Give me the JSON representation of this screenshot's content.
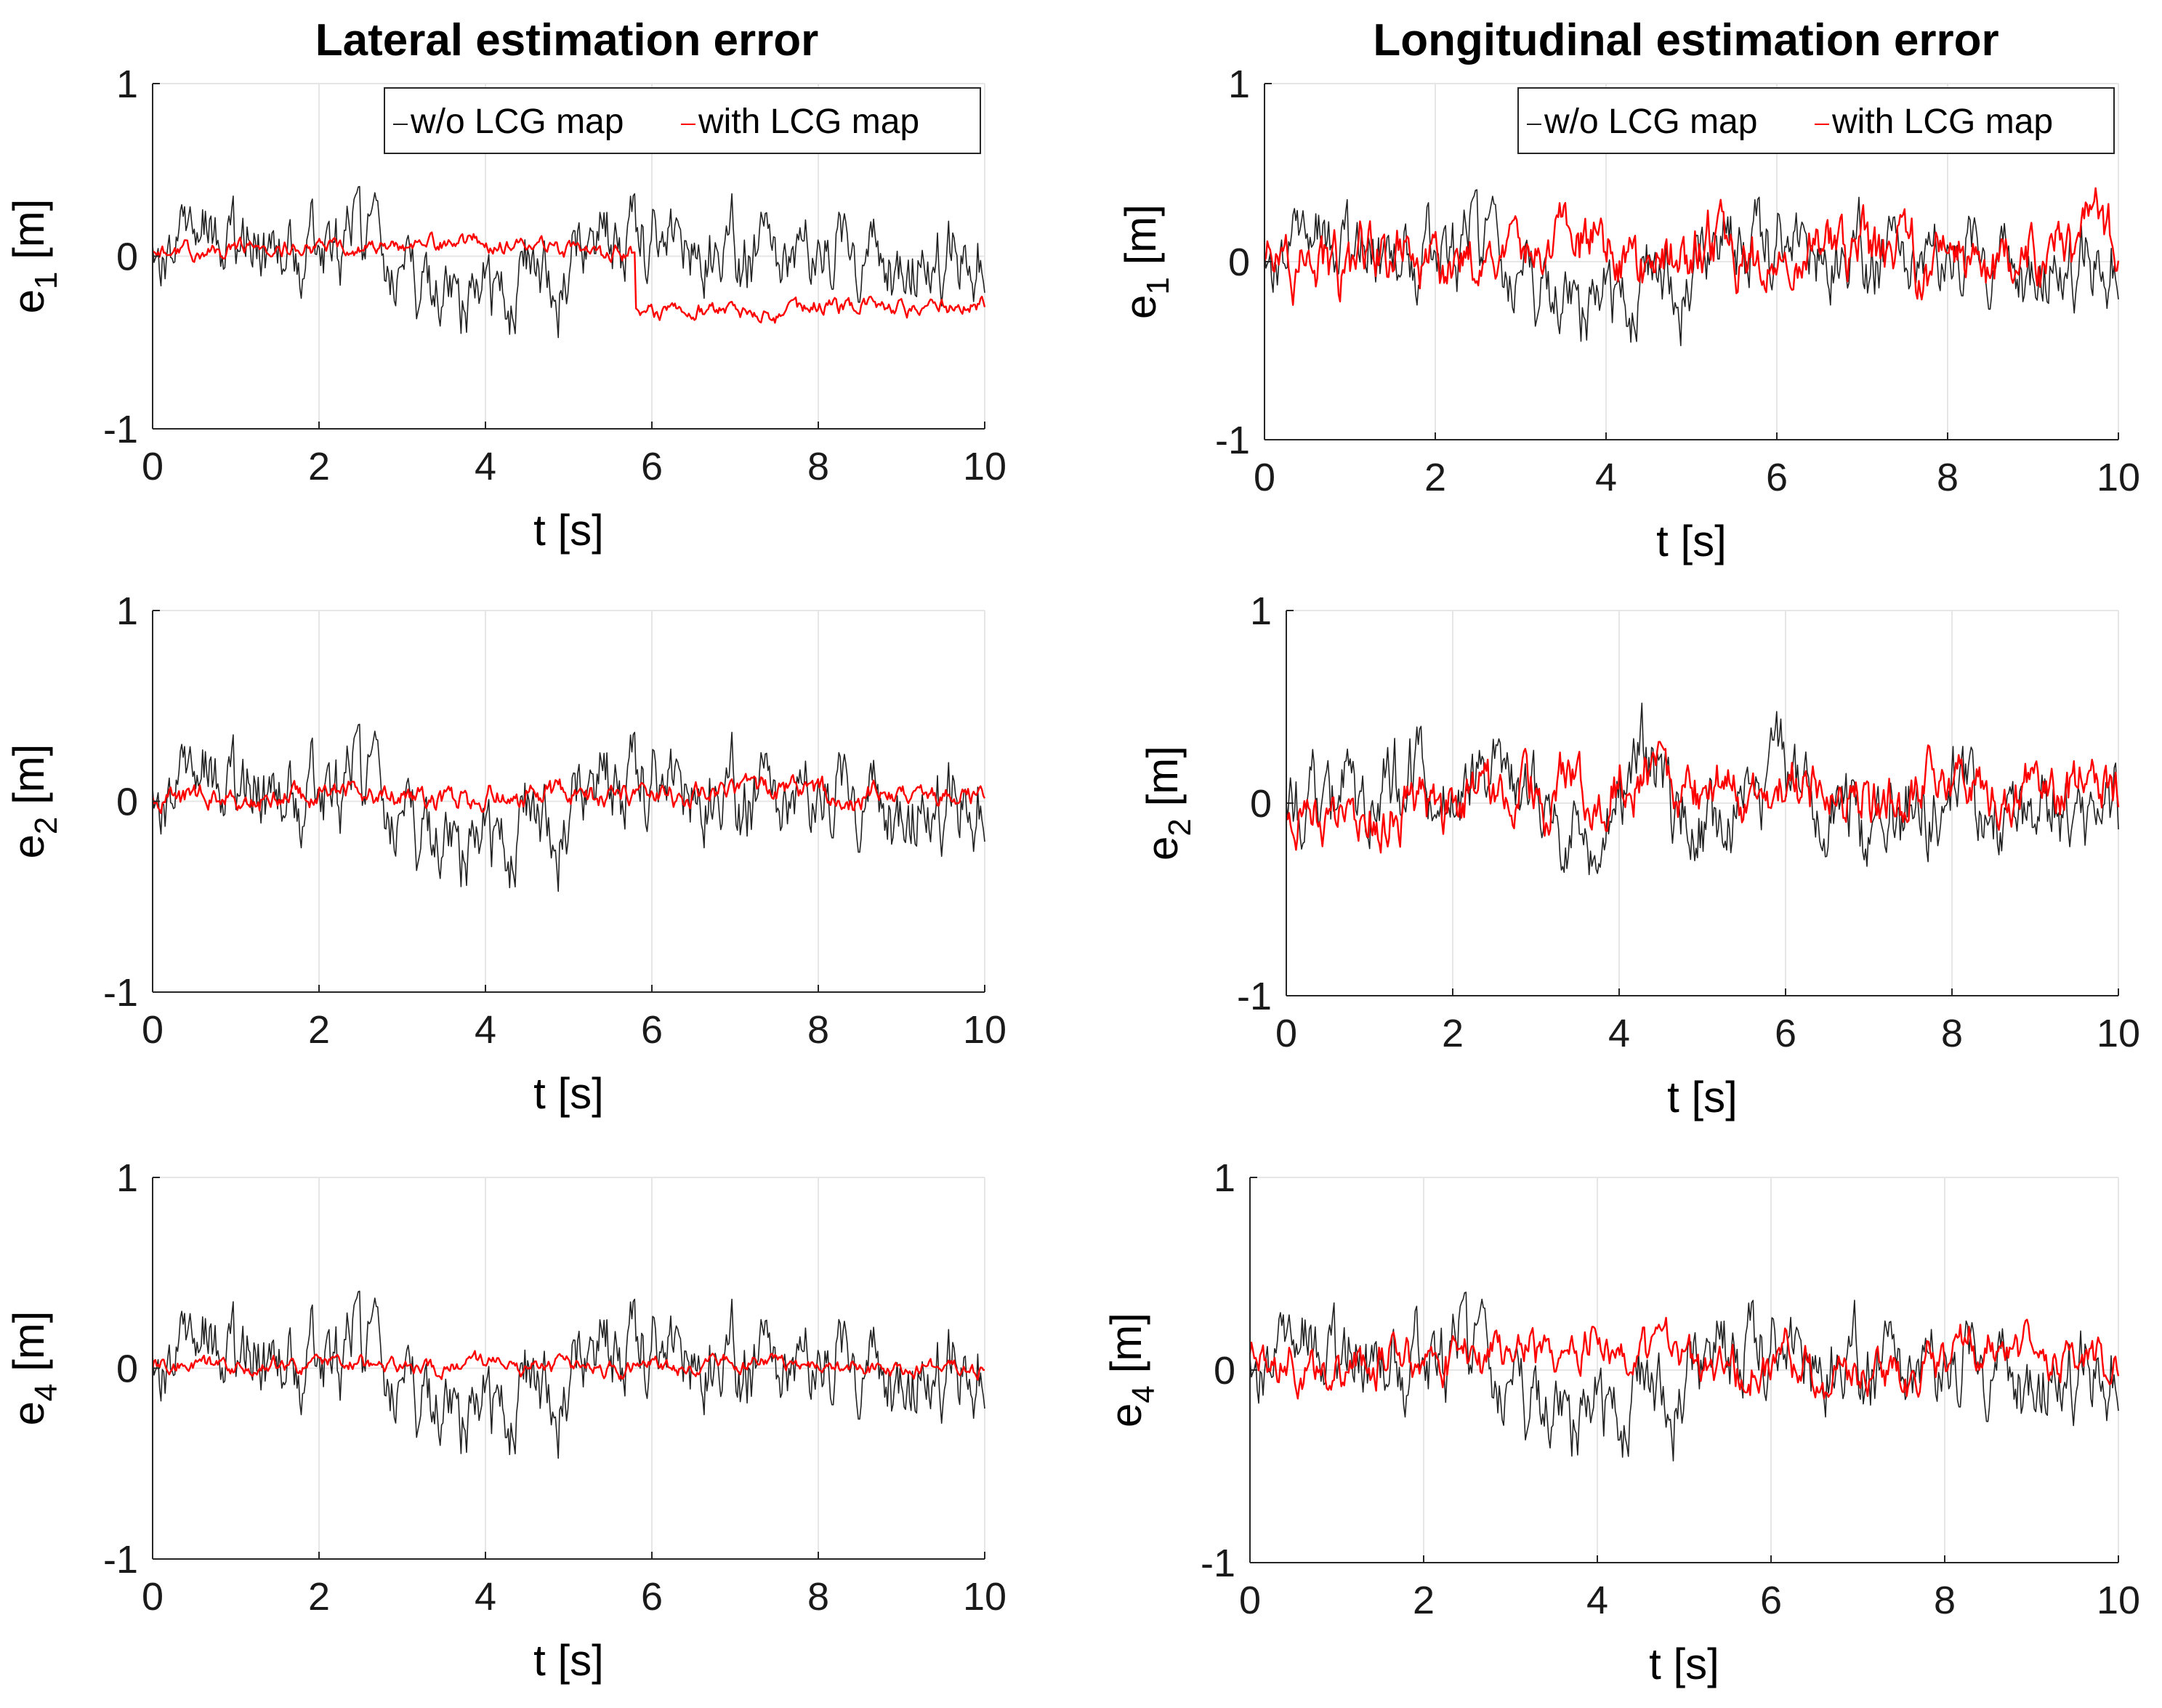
{
  "figure": {
    "column_titles": [
      "Lateral estimation error",
      "Longitudinal estimation error"
    ],
    "colors": {
      "without": "#222222",
      "with": "#ff0000",
      "grid": "#e6e6e6",
      "axis": "#262626"
    }
  },
  "chart_data": [
    {
      "id": "lat-e1",
      "type": "line",
      "column": "Lateral estimation error",
      "ylabel_base": "e",
      "ylabel_sub": "1",
      "ylabel_unit": "[m]",
      "xlabel": "t [s]",
      "xlim": [
        0,
        10
      ],
      "ylim": [
        -1,
        1
      ],
      "xticks": [
        "0",
        "2",
        "4",
        "6",
        "8",
        "10"
      ],
      "yticks": [
        "-1",
        "0",
        "1"
      ],
      "grid": true,
      "legend": [
        "w/o LCG map",
        "with LCG map"
      ],
      "legend_position": "top-right",
      "series": [
        {
          "name": "w/o LCG map",
          "seed": 11,
          "amp": 0.4,
          "offset": 0.0
        },
        {
          "name": "with LCG map",
          "seed": 23,
          "amp": 0.08,
          "offset": 0.05,
          "step_time": 5.8,
          "step_to": -0.35
        }
      ]
    },
    {
      "id": "lon-e1",
      "type": "line",
      "column": "Longitudinal estimation error",
      "ylabel_base": "e",
      "ylabel_sub": "1",
      "ylabel_unit": "[m]",
      "xlabel": "t [s]",
      "xlim": [
        0,
        10
      ],
      "ylim": [
        -1,
        1
      ],
      "xticks": [
        "0",
        "2",
        "4",
        "6",
        "8",
        "10"
      ],
      "yticks": [
        "-1",
        "0",
        "1"
      ],
      "grid": true,
      "legend": [
        "w/o LCG map",
        "with LCG map"
      ],
      "legend_position": "top-right",
      "series": [
        {
          "name": "w/o LCG map",
          "seed": 11,
          "amp": 0.4,
          "offset": 0.0
        },
        {
          "name": "with LCG map",
          "seed": 37,
          "amp": 0.3,
          "offset": 0.05
        }
      ]
    },
    {
      "id": "lat-e2",
      "type": "line",
      "column": "Lateral estimation error",
      "ylabel_base": "e",
      "ylabel_sub": "2",
      "ylabel_unit": "[m]",
      "xlabel": "t [s]",
      "xlim": [
        0,
        10
      ],
      "ylim": [
        -1,
        1
      ],
      "xticks": [
        "0",
        "2",
        "4",
        "6",
        "8",
        "10"
      ],
      "yticks": [
        "-1",
        "0",
        "1"
      ],
      "grid": true,
      "series": [
        {
          "name": "w/o LCG map",
          "seed": 11,
          "amp": 0.4,
          "offset": 0.0
        },
        {
          "name": "with LCG map",
          "seed": 41,
          "amp": 0.1,
          "offset": 0.02
        }
      ]
    },
    {
      "id": "lon-e2",
      "type": "line",
      "column": "Longitudinal estimation error",
      "ylabel_base": "e",
      "ylabel_sub": "2",
      "ylabel_unit": "[m]",
      "xlabel": "t [s]",
      "xlim": [
        0,
        10
      ],
      "ylim": [
        -1,
        1
      ],
      "xticks": [
        "0",
        "2",
        "4",
        "6",
        "8",
        "10"
      ],
      "yticks": [
        "-1",
        "0",
        "1"
      ],
      "grid": true,
      "series": [
        {
          "name": "w/o LCG map",
          "seed": 13,
          "amp": 0.4,
          "offset": 0.0
        },
        {
          "name": "with LCG map",
          "seed": 53,
          "amp": 0.25,
          "offset": 0.05
        }
      ]
    },
    {
      "id": "lat-e4",
      "type": "line",
      "column": "Lateral estimation error",
      "ylabel_base": "e",
      "ylabel_sub": "4",
      "ylabel_unit": "[m]",
      "xlabel": "t [s]",
      "xlim": [
        0,
        10
      ],
      "ylim": [
        -1,
        1
      ],
      "xticks": [
        "0",
        "2",
        "4",
        "6",
        "8",
        "10"
      ],
      "yticks": [
        "-1",
        "0",
        "1"
      ],
      "grid": true,
      "series": [
        {
          "name": "w/o LCG map",
          "seed": 11,
          "amp": 0.4,
          "offset": 0.0
        },
        {
          "name": "with LCG map",
          "seed": 61,
          "amp": 0.07,
          "offset": 0.02
        }
      ]
    },
    {
      "id": "lon-e4",
      "type": "line",
      "column": "Longitudinal estimation error",
      "ylabel_base": "e",
      "ylabel_sub": "4",
      "ylabel_unit": "[m]",
      "xlabel": "t [s]",
      "xlim": [
        0,
        10
      ],
      "ylim": [
        -1,
        1
      ],
      "xticks": [
        "0",
        "2",
        "4",
        "6",
        "8",
        "10"
      ],
      "yticks": [
        "-1",
        "0",
        "1"
      ],
      "grid": true,
      "series": [
        {
          "name": "w/o LCG map",
          "seed": 11,
          "amp": 0.4,
          "offset": 0.0
        },
        {
          "name": "with LCG map",
          "seed": 71,
          "amp": 0.2,
          "offset": 0.05
        }
      ]
    }
  ]
}
